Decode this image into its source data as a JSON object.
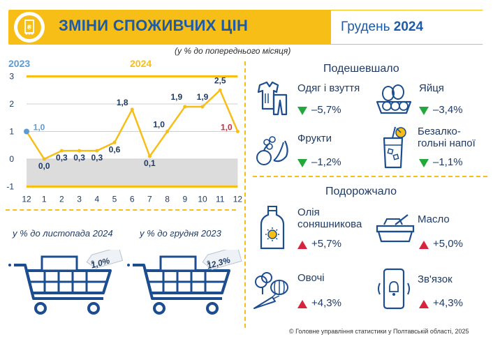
{
  "header": {
    "title": "ЗМІНИ СПОЖИВЧИХ ЦІН",
    "period_month": "Грудень",
    "period_year": "2024"
  },
  "subtitle": "(у % до попереднього місяця)",
  "chart_data": {
    "type": "line",
    "year_labels": [
      "2023",
      "2024"
    ],
    "categories": [
      "12",
      "1",
      "2",
      "3",
      "4",
      "5",
      "6",
      "7",
      "8",
      "9",
      "10",
      "11",
      "12"
    ],
    "values": [
      1.0,
      0.0,
      0.3,
      0.3,
      0.3,
      0.6,
      1.8,
      0.1,
      1.0,
      1.9,
      1.9,
      2.5,
      1.0
    ],
    "value_labels": [
      "1,0",
      "0,0",
      "0,3",
      "0,3",
      "0,3",
      "0,6",
      "1,8",
      "0,1",
      "1,0",
      "1,9",
      "1,9",
      "2,5",
      "1,0"
    ],
    "ylim": [
      -1,
      3
    ],
    "yticks": [
      "3",
      "2",
      "1",
      "0",
      "-1"
    ],
    "colors": {
      "line": "#f6be16",
      "first_point": "#5b9bd5",
      "last_label": "#d8233d",
      "year_2023": "#5b9bd5",
      "year_2024": "#f6be16"
    }
  },
  "cart_indices": {
    "nov_caption": "у % до листопада 2024",
    "nov_value": "1,0%",
    "dec_caption": "у % до грудня 2023",
    "dec_value": "12,3%"
  },
  "cheaper": {
    "title": "Подешевшало",
    "items": [
      {
        "name": "Одяг і взуття",
        "value": "–5,7%",
        "icon": "clothes-icon"
      },
      {
        "name": "Яйця",
        "value": "–3,4%",
        "icon": "eggs-icon"
      },
      {
        "name": "Фрукти",
        "value": "–1,2%",
        "icon": "fruits-icon"
      },
      {
        "name": "Безалко-гольні напої",
        "line1": "Безалко-",
        "line2": "гольні напої",
        "value": "–1,1%",
        "icon": "drink-icon"
      }
    ]
  },
  "pricier": {
    "title": "Подорожчало",
    "items": [
      {
        "name": "Олія соняшникова",
        "line1": "Олія",
        "line2": "соняшникова",
        "value": "+5,7%",
        "icon": "oil-bottle-icon"
      },
      {
        "name": "Масло",
        "value": "+5,0%",
        "icon": "butter-icon"
      },
      {
        "name": "Овочі",
        "value": "+4,3%",
        "icon": "vegetables-icon"
      },
      {
        "name": "Зв'язок",
        "value": "+4,3%",
        "icon": "phone-icon"
      }
    ]
  },
  "footer": "© Головне управління статистики у Полтавській області, 2025"
}
